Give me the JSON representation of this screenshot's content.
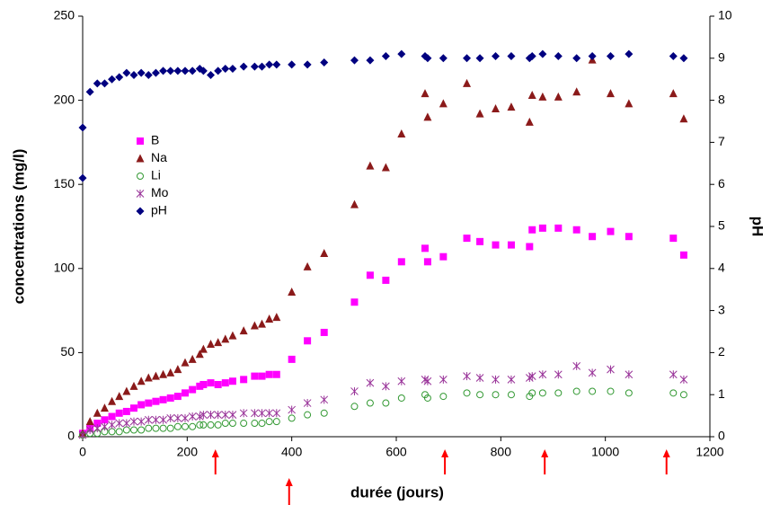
{
  "chart_data": {
    "type": "scatter",
    "xlabel": "durée (jours)",
    "ylabel": "concentrations (mg/l)",
    "y2label": "pH",
    "xlim": [
      0,
      1200
    ],
    "xticks": [
      0,
      200,
      400,
      600,
      800,
      1000,
      1200
    ],
    "ylim": [
      0,
      250
    ],
    "yticks": [
      0,
      50,
      100,
      150,
      200,
      250
    ],
    "y2lim": [
      0,
      10
    ],
    "y2ticks": [
      0,
      1,
      2,
      3,
      4,
      5,
      6,
      7,
      8,
      9,
      10
    ],
    "arrows_x": [
      254,
      395,
      693,
      884,
      1117
    ],
    "arrow_color": "#ff0000",
    "series": [
      {
        "name": "B",
        "color": "#ff00ff",
        "marker": "square",
        "x": [
          0,
          14,
          28,
          42,
          56,
          70,
          84,
          98,
          112,
          126,
          140,
          154,
          168,
          182,
          196,
          210,
          224,
          231,
          245,
          259,
          273,
          287,
          308,
          329,
          343,
          357,
          371,
          400,
          430,
          462,
          520,
          550,
          580,
          610,
          655,
          660,
          690,
          735,
          760,
          790,
          820,
          855,
          860,
          880,
          910,
          945,
          975,
          1010,
          1045,
          1130,
          1150
        ],
        "values": [
          2,
          5,
          8,
          10,
          12,
          14,
          15,
          17,
          19,
          20,
          21,
          22,
          23,
          24,
          26,
          28,
          30,
          31,
          32,
          31,
          32,
          33,
          34,
          36,
          36,
          37,
          37,
          46,
          57,
          62,
          80,
          96,
          93,
          104,
          112,
          104,
          107,
          118,
          116,
          114,
          114,
          113,
          123,
          124,
          124,
          123,
          119,
          122,
          119,
          118,
          108
        ]
      },
      {
        "name": "Na",
        "color": "#8b1a1a",
        "marker": "triangle",
        "x": [
          0,
          14,
          28,
          42,
          56,
          70,
          84,
          98,
          112,
          126,
          140,
          154,
          168,
          182,
          196,
          210,
          224,
          231,
          245,
          259,
          273,
          287,
          308,
          329,
          343,
          357,
          371,
          400,
          430,
          462,
          520,
          550,
          580,
          610,
          655,
          660,
          690,
          735,
          760,
          790,
          820,
          855,
          860,
          880,
          910,
          945,
          975,
          1010,
          1045,
          1130,
          1150
        ],
        "values": [
          2,
          9,
          14,
          17,
          21,
          24,
          27,
          30,
          33,
          35,
          36,
          37,
          38,
          40,
          44,
          46,
          49,
          52,
          55,
          56,
          58,
          60,
          63,
          66,
          67,
          70,
          71,
          86,
          101,
          109,
          138,
          161,
          160,
          180,
          204,
          190,
          198,
          210,
          192,
          195,
          196,
          187,
          203,
          202,
          202,
          205,
          224,
          204,
          198,
          204,
          189
        ]
      },
      {
        "name": "Li",
        "color": "#339933",
        "marker": "circle",
        "x": [
          0,
          14,
          28,
          42,
          56,
          70,
          84,
          98,
          112,
          126,
          140,
          154,
          168,
          182,
          196,
          210,
          224,
          231,
          245,
          259,
          273,
          287,
          308,
          329,
          343,
          357,
          371,
          400,
          430,
          462,
          520,
          550,
          580,
          610,
          655,
          660,
          690,
          735,
          760,
          790,
          820,
          855,
          860,
          880,
          910,
          945,
          975,
          1010,
          1045,
          1130,
          1150
        ],
        "values": [
          1,
          2,
          2,
          3,
          3,
          3,
          4,
          4,
          4,
          5,
          5,
          5,
          5,
          6,
          6,
          6,
          7,
          7,
          7,
          7,
          8,
          8,
          8,
          8,
          8,
          9,
          9,
          11,
          13,
          14,
          18,
          20,
          20,
          23,
          25,
          23,
          24,
          26,
          25,
          25,
          25,
          24,
          26,
          26,
          26,
          27,
          27,
          27,
          26,
          26,
          25
        ]
      },
      {
        "name": "Mo",
        "color": "#993399",
        "marker": "asterisk",
        "x": [
          0,
          14,
          28,
          42,
          56,
          70,
          84,
          98,
          112,
          126,
          140,
          154,
          168,
          182,
          196,
          210,
          224,
          231,
          245,
          259,
          273,
          287,
          308,
          329,
          343,
          357,
          371,
          400,
          430,
          462,
          520,
          550,
          580,
          610,
          655,
          660,
          690,
          735,
          760,
          790,
          820,
          855,
          860,
          880,
          910,
          945,
          975,
          1010,
          1045,
          1130,
          1150
        ],
        "values": [
          1,
          4,
          5,
          6,
          7,
          8,
          8,
          9,
          9,
          10,
          10,
          10,
          11,
          11,
          11,
          12,
          12,
          13,
          13,
          13,
          13,
          13,
          14,
          14,
          14,
          14,
          14,
          16,
          20,
          22,
          27,
          32,
          30,
          33,
          34,
          33,
          34,
          36,
          35,
          34,
          34,
          35,
          36,
          37,
          37,
          42,
          38,
          40,
          37,
          37,
          34
        ]
      },
      {
        "name": "pH",
        "color": "#000080",
        "marker": "diamond",
        "axis": "y2",
        "x": [
          0,
          0,
          14,
          28,
          42,
          56,
          70,
          84,
          98,
          112,
          126,
          140,
          154,
          168,
          182,
          196,
          210,
          224,
          231,
          245,
          259,
          273,
          287,
          308,
          329,
          343,
          357,
          371,
          400,
          430,
          462,
          520,
          550,
          580,
          610,
          655,
          660,
          690,
          735,
          760,
          790,
          820,
          855,
          860,
          880,
          910,
          945,
          975,
          1010,
          1045,
          1130,
          1150
        ],
        "values": [
          6.15,
          7.35,
          8.2,
          8.4,
          8.4,
          8.5,
          8.55,
          8.65,
          8.6,
          8.65,
          8.6,
          8.65,
          8.7,
          8.7,
          8.7,
          8.7,
          8.7,
          8.75,
          8.7,
          8.6,
          8.7,
          8.75,
          8.75,
          8.8,
          8.8,
          8.8,
          8.85,
          8.85,
          8.85,
          8.85,
          8.9,
          8.95,
          8.95,
          9.05,
          9.1,
          9.05,
          9.0,
          9.0,
          9.0,
          9.0,
          9.05,
          9.05,
          9.0,
          9.05,
          9.1,
          9.05,
          9.0,
          9.05,
          9.05,
          9.1,
          9.05,
          9.0
        ]
      }
    ]
  }
}
